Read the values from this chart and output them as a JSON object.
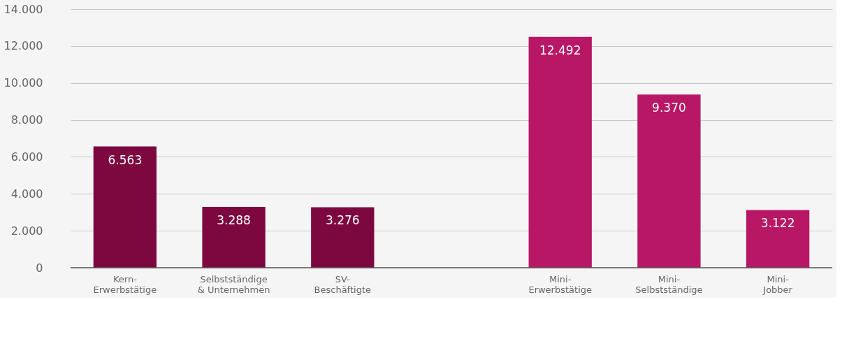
{
  "chart_data": {
    "type": "bar",
    "categories": [
      "Kern-\nErwerbstätige",
      "Selbstständige\n& Unternehmen",
      "SV-\nBeschäftigte",
      null,
      "Mini-\nErwerbstätige",
      "Mini-\nSelbstständige",
      "Mini-\nJobber"
    ],
    "values": [
      6563,
      3288,
      3276,
      null,
      12492,
      9370,
      3122
    ],
    "colors": [
      "#7d0840",
      "#7d0840",
      "#7d0840",
      null,
      "#b81765",
      "#b81765",
      "#b81765"
    ],
    "value_labels": [
      "6.563",
      "3.288",
      "3.276",
      null,
      "12.492",
      "9.370",
      "3.122"
    ],
    "ylim": [
      0,
      14000
    ],
    "yticks": [
      {
        "value": 0,
        "label": "0"
      },
      {
        "value": 2000,
        "label": "2.000"
      },
      {
        "value": 4000,
        "label": "4.000"
      },
      {
        "value": 6000,
        "label": "6.000"
      },
      {
        "value": 8000,
        "label": "8.000"
      },
      {
        "value": 10000,
        "label": "10.000"
      },
      {
        "value": 12000,
        "label": "12.000"
      },
      {
        "value": 14000,
        "label": "14.000"
      }
    ],
    "grid": "y"
  }
}
